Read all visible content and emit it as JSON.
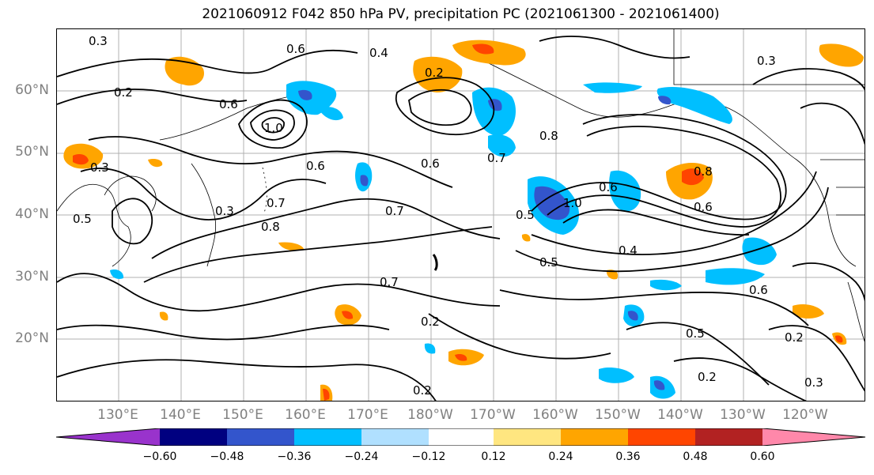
{
  "title": "2021060912 F042 850 hPa PV, precipitation PC (2021061300 - 2021061400)",
  "lat_labels": [
    "60°N",
    "50°N",
    "40°N",
    "30°N",
    "20°N"
  ],
  "lon_labels": [
    "130°E",
    "140°E",
    "150°E",
    "160°E",
    "170°E",
    "180°W",
    "170°W",
    "160°W",
    "150°W",
    "140°W",
    "130°W",
    "120°W"
  ],
  "contour_labels": [
    "0.3",
    "0.2",
    "0.6",
    "0.6",
    "1.0",
    "0.4",
    "0.2",
    "0.3",
    "0.5",
    "0.8",
    "0.7",
    "0.7",
    "0.8",
    "0.6",
    "0.6",
    "0.8",
    "0.3",
    "0.7",
    "0.6",
    "1.0",
    "0.5",
    "0.4",
    "0.5",
    "0.6",
    "0.7",
    "0.2",
    "0.5",
    "0.2",
    "0.6",
    "0.2",
    "0.3",
    "0.2",
    "0.3"
  ],
  "colorbar": {
    "tick_labels": [
      "−0.60",
      "−0.48",
      "−0.36",
      "−0.24",
      "−0.12",
      "0.12",
      "0.24",
      "0.36",
      "0.48",
      "0.60"
    ],
    "colors": [
      "#9933cc",
      "#000080",
      "#3355cc",
      "#00bfff",
      "#b0e0ff",
      "#ffffff",
      "#ffe680",
      "#ffa500",
      "#ff4500",
      "#b22222",
      "#ff88aa"
    ]
  }
}
